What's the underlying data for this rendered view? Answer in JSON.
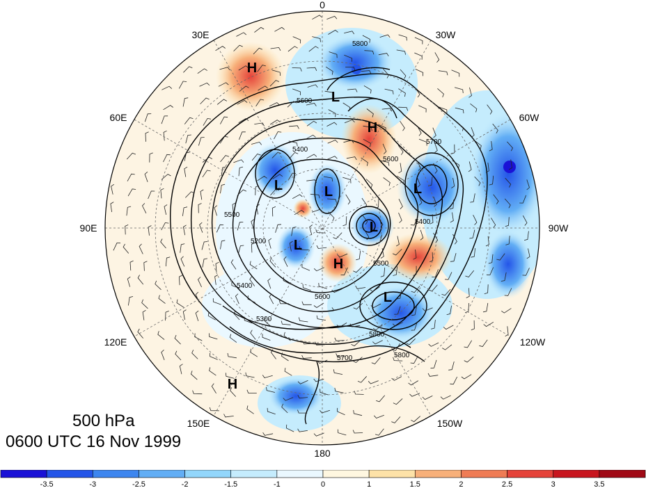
{
  "title": {
    "level": "500 hPa",
    "time": "0600 UTC 16 Nov 1999"
  },
  "longitude_labels": [
    {
      "id": "0",
      "text": "0"
    },
    {
      "id": "30W",
      "text": "30W"
    },
    {
      "id": "60W",
      "text": "60W"
    },
    {
      "id": "90W",
      "text": "90W"
    },
    {
      "id": "120W",
      "text": "120W"
    },
    {
      "id": "150W",
      "text": "150W"
    },
    {
      "id": "180",
      "text": "180"
    },
    {
      "id": "150E",
      "text": "150E"
    },
    {
      "id": "120E",
      "text": "120E"
    },
    {
      "id": "90E",
      "text": "90E"
    },
    {
      "id": "60E",
      "text": "60E"
    },
    {
      "id": "30E",
      "text": "30E"
    }
  ],
  "pressure_centers": [
    {
      "type": "H",
      "label": "H"
    },
    {
      "type": "L",
      "label": "L"
    },
    {
      "type": "H",
      "label": "H"
    },
    {
      "type": "L",
      "label": "L"
    },
    {
      "type": "L",
      "label": "L"
    },
    {
      "type": "L",
      "label": "L"
    },
    {
      "type": "L",
      "label": "L"
    },
    {
      "type": "L",
      "label": "L"
    },
    {
      "type": "H",
      "label": "H"
    },
    {
      "type": "L",
      "label": "L"
    },
    {
      "type": "H",
      "label": "H"
    }
  ],
  "contour_labels": [
    "5800",
    "5600",
    "5400",
    "5700",
    "5600",
    "5400",
    "5200",
    "5300",
    "5500",
    "5700",
    "5800",
    "5800",
    "5400",
    "5600",
    "5500"
  ],
  "colorbar": {
    "colors": [
      "#1a12d6",
      "#2455e8",
      "#3d86ef",
      "#62aef5",
      "#92d6fb",
      "#c5ecfd",
      "#eaf8ff",
      "#fff7e0",
      "#fde2a8",
      "#f7b07a",
      "#ef7c55",
      "#e5433a",
      "#c8161f",
      "#a00a16"
    ],
    "tick_labels": [
      "-3.5",
      "-3",
      "-2.5",
      "-2",
      "-1.5",
      "-1",
      "0",
      "1",
      "1.5",
      "2",
      "2.5",
      "3",
      "3.5"
    ]
  }
}
